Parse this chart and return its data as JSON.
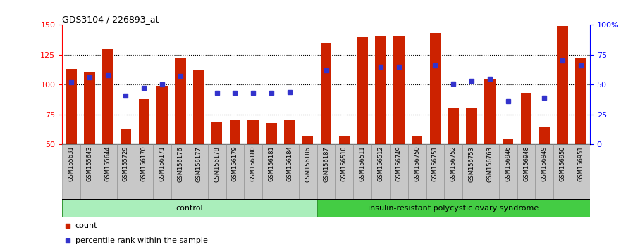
{
  "title": "GDS3104 / 226893_at",
  "samples": [
    "GSM155631",
    "GSM155643",
    "GSM155644",
    "GSM155729",
    "GSM156170",
    "GSM156171",
    "GSM156176",
    "GSM156177",
    "GSM156178",
    "GSM156179",
    "GSM156180",
    "GSM156181",
    "GSM156184",
    "GSM156186",
    "GSM156187",
    "GSM156510",
    "GSM156511",
    "GSM156512",
    "GSM156749",
    "GSM156750",
    "GSM156751",
    "GSM156752",
    "GSM156753",
    "GSM156763",
    "GSM156946",
    "GSM156948",
    "GSM156949",
    "GSM156950",
    "GSM156951"
  ],
  "counts": [
    113,
    110,
    130,
    63,
    88,
    99,
    122,
    112,
    69,
    70,
    70,
    68,
    70,
    57,
    135,
    57,
    140,
    141,
    141,
    57,
    143,
    80,
    80,
    105,
    55,
    93,
    65,
    149,
    122
  ],
  "percentiles": [
    52,
    56,
    58,
    41,
    47,
    50,
    57,
    null,
    43,
    43,
    43,
    43,
    44,
    null,
    62,
    null,
    null,
    65,
    65,
    null,
    66,
    51,
    53,
    55,
    36,
    null,
    39,
    70,
    66
  ],
  "control_count": 14,
  "bar_color": "#CC2200",
  "dot_color": "#3333CC",
  "control_color": "#AAEEBB",
  "disease_color": "#44CC44",
  "ylim_left": [
    50,
    150
  ],
  "ylim_right": [
    0,
    100
  ],
  "yticks_left": [
    50,
    75,
    100,
    125,
    150
  ],
  "yticks_right": [
    0,
    25,
    50,
    75,
    100
  ],
  "grid_lines": [
    75,
    100,
    125
  ],
  "bg_color": "#FFFFFF"
}
